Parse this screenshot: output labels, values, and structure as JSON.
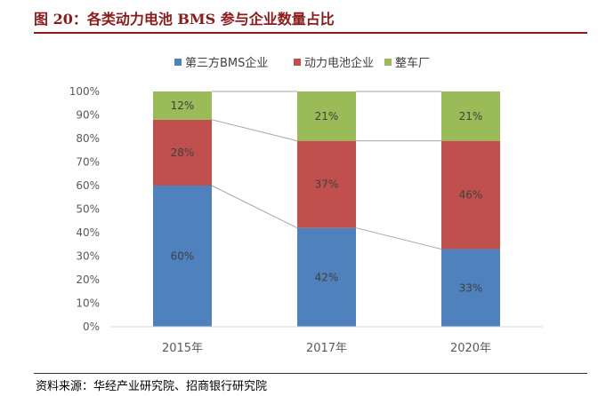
{
  "figure": {
    "title": "图 20：各类动力电池 BMS 参与企业数量占比",
    "source": "资料来源：华经产业研究院、招商银行研究院"
  },
  "chart_data": {
    "type": "bar",
    "stacked": true,
    "categories": [
      "2015年",
      "2017年",
      "2020年"
    ],
    "series": [
      {
        "name": "第三方BMS企业",
        "values": [
          60,
          42,
          33
        ],
        "labels": [
          "60%",
          "42%",
          "33%"
        ],
        "color": "#4f81bd"
      },
      {
        "name": "动力电池企业",
        "values": [
          28,
          37,
          46
        ],
        "labels": [
          "28%",
          "37%",
          "46%"
        ],
        "color": "#c0504d"
      },
      {
        "name": "整车厂",
        "values": [
          12,
          21,
          21
        ],
        "labels": [
          "12%",
          "21%",
          "21%"
        ],
        "color": "#9bbb59"
      }
    ],
    "ylim": [
      0,
      100
    ],
    "yticks": [
      "0%",
      "10%",
      "20%",
      "30%",
      "40%",
      "50%",
      "60%",
      "70%",
      "80%",
      "90%",
      "100%"
    ],
    "connector_lines": true,
    "grid": false,
    "legend_position": "top"
  }
}
